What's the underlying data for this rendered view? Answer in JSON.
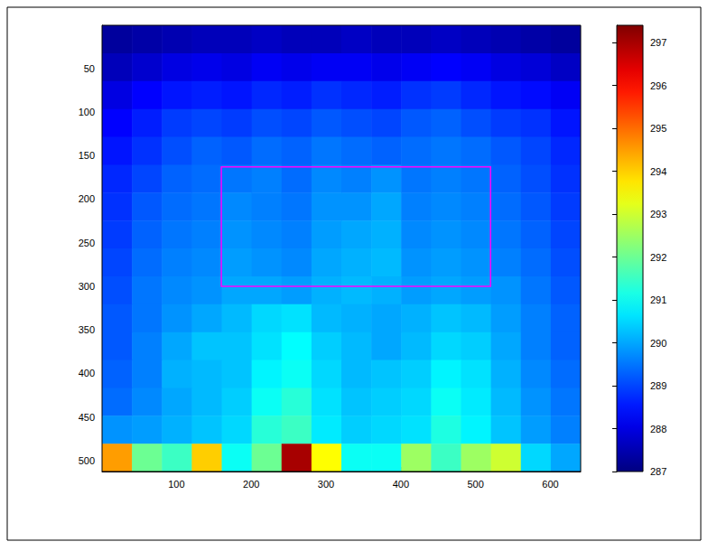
{
  "chart_data": {
    "type": "heatmap",
    "x_edges": [
      0.5,
      40.5,
      80.5,
      120.5,
      160.5,
      200.5,
      240.5,
      280.5,
      320.5,
      360.5,
      400.5,
      440.5,
      480.5,
      520.5,
      560.5,
      600.5,
      640.5
    ],
    "y_edges": [
      0.5,
      32.5,
      64.5,
      96.5,
      128.5,
      160.5,
      192.5,
      224.5,
      256.5,
      288.5,
      320.5,
      352.5,
      384.5,
      416.5,
      448.5,
      480.5,
      512.5
    ],
    "values": [
      [
        287.3,
        287.4,
        287.5,
        287.6,
        287.6,
        287.7,
        287.6,
        287.6,
        287.7,
        287.6,
        287.6,
        287.7,
        287.6,
        287.5,
        287.4,
        287.3
      ],
      [
        287.6,
        287.8,
        288.0,
        288.1,
        288.0,
        288.2,
        288.1,
        288.2,
        288.2,
        288.1,
        288.2,
        288.3,
        288.2,
        288.0,
        287.9,
        287.7
      ],
      [
        288.0,
        288.3,
        288.5,
        288.6,
        288.5,
        288.7,
        288.6,
        288.8,
        288.7,
        288.6,
        288.8,
        288.9,
        288.7,
        288.5,
        288.4,
        288.2
      ],
      [
        288.3,
        288.6,
        288.9,
        289.0,
        288.9,
        289.1,
        289.0,
        289.2,
        289.1,
        289.0,
        289.2,
        289.3,
        289.1,
        288.9,
        288.8,
        288.5
      ],
      [
        288.5,
        288.8,
        289.1,
        289.3,
        289.2,
        289.4,
        289.3,
        289.5,
        289.4,
        289.3,
        289.4,
        289.5,
        289.4,
        289.2,
        289.0,
        288.7
      ],
      [
        288.7,
        289.0,
        289.3,
        289.4,
        289.5,
        289.6,
        289.4,
        289.7,
        289.6,
        289.8,
        289.5,
        289.6,
        289.5,
        289.3,
        289.1,
        288.8
      ],
      [
        288.8,
        289.2,
        289.4,
        289.5,
        289.7,
        289.6,
        289.5,
        289.8,
        289.8,
        290.0,
        289.6,
        289.7,
        289.6,
        289.4,
        289.2,
        288.9
      ],
      [
        288.9,
        289.3,
        289.5,
        289.6,
        289.8,
        289.7,
        289.6,
        289.9,
        290.0,
        290.1,
        289.7,
        289.8,
        289.7,
        289.5,
        289.3,
        289.0
      ],
      [
        289.0,
        289.4,
        289.6,
        289.7,
        289.9,
        289.8,
        289.7,
        290.0,
        290.1,
        290.2,
        289.8,
        289.9,
        289.8,
        289.6,
        289.4,
        289.1
      ],
      [
        289.1,
        289.5,
        289.7,
        289.8,
        290.0,
        290.0,
        289.9,
        290.1,
        290.2,
        290.1,
        289.9,
        290.0,
        289.9,
        289.8,
        289.5,
        289.2
      ],
      [
        289.2,
        289.5,
        289.8,
        290.0,
        290.2,
        290.5,
        290.6,
        290.2,
        290.1,
        290.0,
        290.1,
        290.3,
        290.2,
        289.9,
        289.6,
        289.3
      ],
      [
        289.2,
        289.6,
        290.0,
        290.3,
        290.3,
        290.6,
        290.9,
        290.4,
        290.2,
        290.0,
        290.2,
        290.5,
        290.4,
        290.0,
        289.6,
        289.3
      ],
      [
        289.3,
        289.6,
        290.1,
        290.2,
        290.3,
        290.8,
        291.0,
        290.5,
        290.2,
        290.3,
        290.4,
        290.8,
        290.6,
        290.1,
        289.7,
        289.4
      ],
      [
        289.4,
        289.7,
        290.0,
        290.2,
        290.4,
        291.0,
        291.3,
        290.6,
        290.3,
        290.4,
        290.5,
        291.0,
        290.7,
        290.2,
        289.8,
        289.5
      ],
      [
        289.8,
        289.9,
        290.1,
        290.3,
        290.5,
        291.3,
        291.5,
        290.7,
        290.4,
        290.5,
        290.6,
        291.2,
        290.8,
        290.3,
        289.9,
        289.6
      ],
      [
        294.5,
        292.0,
        291.5,
        294.0,
        291.0,
        292.0,
        297.0,
        293.5,
        291.0,
        291.0,
        292.5,
        291.5,
        292.5,
        293.0,
        290.5,
        290.0
      ]
    ],
    "xlim": [
      0.5,
      640.5
    ],
    "ylim": [
      0.5,
      512.5
    ],
    "xticks": [
      100,
      200,
      300,
      400,
      500,
      600
    ],
    "yticks": [
      50,
      100,
      150,
      200,
      250,
      300,
      350,
      400,
      450,
      500
    ],
    "colorbar": {
      "range": [
        287,
        297.4
      ],
      "ticks": [
        287,
        288,
        289,
        290,
        291,
        292,
        293,
        294,
        295,
        296,
        297
      ]
    },
    "rectangle": {
      "x": [
        160,
        520
      ],
      "y": [
        163,
        300
      ],
      "color": "#ff00ff"
    }
  }
}
